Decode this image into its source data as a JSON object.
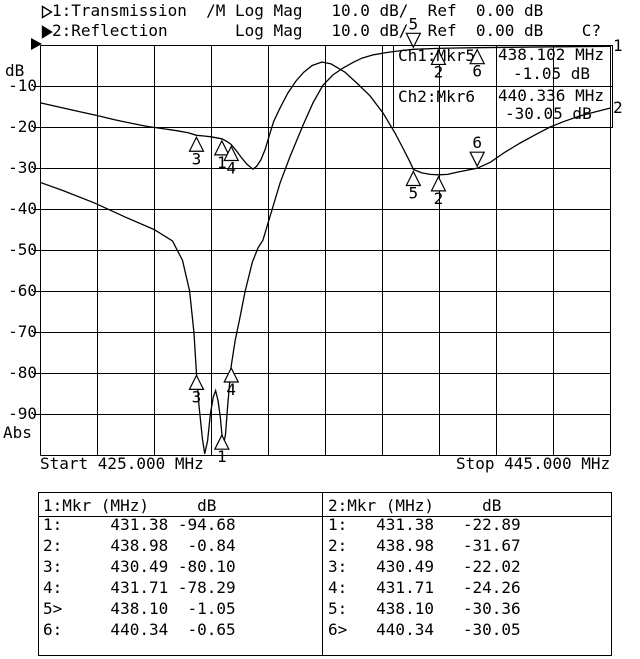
{
  "header": {
    "line1_text": "1:Transmission  /M Log Mag   10.0 dB/  Ref  0.00 dB",
    "line2_text": "2:Reflection       Log Mag   10.0 dB/  Ref  0.00 dB    C?"
  },
  "icons": {
    "trace1_indicator": "open-right-triangle",
    "trace2_indicator": "filled-right-triangle",
    "ref_level_arrow": "filled-right-triangle",
    "marker_normal": "up-triangle",
    "marker_active": "down-triangle"
  },
  "y_axis": {
    "unit_label": "dB",
    "tick_labels": [
      "-10",
      "-20",
      "-30",
      "-40",
      "-50",
      "-60",
      "-70",
      "-80",
      "-90"
    ],
    "bottom_label": "Abs"
  },
  "x_axis": {
    "start_label": "Start 425.000 MHz",
    "stop_label": "Stop 445.000 MHz"
  },
  "trace_edge_labels": {
    "trace1": "1",
    "trace2": "2"
  },
  "marker_info": {
    "ch1": {
      "label": "Ch1:Mkr5",
      "freq": "438.102 MHz",
      "level": "-1.05 dB"
    },
    "ch2": {
      "label": "Ch2:Mkr6",
      "freq": "440.336 MHz",
      "level": "-30.05 dB"
    }
  },
  "marker_tables": [
    {
      "header": "1:Mkr (MHz)     dB",
      "rows": [
        "1:     431.38 -94.68",
        "2:     438.98  -0.84",
        "3:     430.49 -80.10",
        "4:     431.71 -78.29",
        "5>     438.10  -1.05",
        "6:     440.34  -0.65"
      ]
    },
    {
      "header": "2:Mkr (MHz)     dB",
      "rows": [
        "1:   431.38   -22.89",
        "2:   438.98   -31.67",
        "3:   430.49   -22.02",
        "4:   431.71   -24.26",
        "5:   438.10   -30.36",
        "6>   440.34   -30.05"
      ]
    }
  ],
  "chart_data": {
    "type": "line",
    "title": "",
    "x_unit": "MHz",
    "y_unit": "dB",
    "x_range": [
      425.0,
      445.0
    ],
    "y_range": [
      -100,
      0
    ],
    "y_per_div": 10,
    "x_divisions": 10,
    "grid": true,
    "series": [
      {
        "name": "Transmission",
        "channel": 1,
        "points": [
          [
            425.0,
            -33.5
          ],
          [
            425.8,
            -35.5
          ],
          [
            426.9,
            -38.5
          ],
          [
            428.0,
            -42.0
          ],
          [
            429.0,
            -45.0
          ],
          [
            429.65,
            -47.8
          ],
          [
            430.0,
            -52.5
          ],
          [
            430.25,
            -60.0
          ],
          [
            430.4,
            -70.0
          ],
          [
            430.49,
            -80.1
          ],
          [
            430.58,
            -88.0
          ],
          [
            430.7,
            -96.0
          ],
          [
            430.78,
            -99.7
          ],
          [
            430.88,
            -96.5
          ],
          [
            430.98,
            -90.0
          ],
          [
            431.08,
            -85.8
          ],
          [
            431.16,
            -84.3
          ],
          [
            431.25,
            -86.8
          ],
          [
            431.33,
            -91.0
          ],
          [
            431.38,
            -94.68
          ],
          [
            431.44,
            -97.4
          ],
          [
            431.51,
            -95.0
          ],
          [
            431.58,
            -88.5
          ],
          [
            431.65,
            -82.8
          ],
          [
            431.71,
            -78.29
          ],
          [
            431.85,
            -72.0
          ],
          [
            432.0,
            -67.0
          ],
          [
            432.2,
            -60.0
          ],
          [
            432.45,
            -53.0
          ],
          [
            432.65,
            -49.5
          ],
          [
            432.82,
            -47.6
          ],
          [
            433.14,
            -40.2
          ],
          [
            433.42,
            -33.7
          ],
          [
            433.77,
            -27.3
          ],
          [
            434.23,
            -19.5
          ],
          [
            434.58,
            -14.1
          ],
          [
            434.93,
            -9.8
          ],
          [
            435.28,
            -7.3
          ],
          [
            435.63,
            -5.6
          ],
          [
            436.0,
            -4.2
          ],
          [
            436.3,
            -3.2
          ],
          [
            436.7,
            -2.4
          ],
          [
            437.2,
            -1.8
          ],
          [
            437.7,
            -1.35
          ],
          [
            438.1,
            -1.05
          ],
          [
            438.98,
            -0.84
          ],
          [
            439.6,
            -0.74
          ],
          [
            440.34,
            -0.65
          ],
          [
            441.5,
            -0.55
          ],
          [
            443.0,
            -0.45
          ],
          [
            445.0,
            -0.35
          ]
        ]
      },
      {
        "name": "Reflection",
        "channel": 2,
        "points": [
          [
            425.0,
            -14.1
          ],
          [
            425.7,
            -15.2
          ],
          [
            426.4,
            -16.3
          ],
          [
            427.0,
            -17.2
          ],
          [
            427.6,
            -18.2
          ],
          [
            428.2,
            -19.1
          ],
          [
            428.8,
            -19.9
          ],
          [
            429.3,
            -20.4
          ],
          [
            429.8,
            -20.9
          ],
          [
            430.2,
            -21.4
          ],
          [
            430.49,
            -22.02
          ],
          [
            430.75,
            -22.2
          ],
          [
            431.0,
            -22.4
          ],
          [
            431.38,
            -22.89
          ],
          [
            431.55,
            -23.5
          ],
          [
            431.71,
            -24.26
          ],
          [
            431.88,
            -25.7
          ],
          [
            432.05,
            -27.3
          ],
          [
            432.25,
            -29.0
          ],
          [
            432.47,
            -30.3
          ],
          [
            432.6,
            -29.6
          ],
          [
            432.75,
            -28.0
          ],
          [
            432.9,
            -25.5
          ],
          [
            433.05,
            -22.0
          ],
          [
            433.2,
            -18.6
          ],
          [
            433.42,
            -15.4
          ],
          [
            433.7,
            -11.7
          ],
          [
            433.98,
            -8.8
          ],
          [
            434.26,
            -6.6
          ],
          [
            434.55,
            -5.0
          ],
          [
            434.89,
            -4.15
          ],
          [
            435.21,
            -4.6
          ],
          [
            435.7,
            -6.6
          ],
          [
            436.12,
            -9.3
          ],
          [
            436.58,
            -12.4
          ],
          [
            437.04,
            -16.6
          ],
          [
            437.46,
            -21.5
          ],
          [
            437.77,
            -25.6
          ],
          [
            437.98,
            -28.5
          ],
          [
            438.1,
            -30.36
          ],
          [
            438.4,
            -31.2
          ],
          [
            438.7,
            -31.55
          ],
          [
            438.98,
            -31.67
          ],
          [
            439.3,
            -31.55
          ],
          [
            439.65,
            -31.0
          ],
          [
            440.0,
            -30.5
          ],
          [
            440.34,
            -30.05
          ],
          [
            440.8,
            -28.6
          ],
          [
            441.3,
            -26.2
          ],
          [
            441.85,
            -23.9
          ],
          [
            442.4,
            -21.8
          ],
          [
            442.9,
            -20.0
          ],
          [
            443.4,
            -18.6
          ],
          [
            443.95,
            -17.3
          ],
          [
            444.5,
            -16.3
          ],
          [
            445.0,
            -15.4
          ]
        ]
      }
    ],
    "markers": [
      {
        "n": "1",
        "channel": 1,
        "freq": 431.38,
        "db": -94.68,
        "active": false
      },
      {
        "n": "2",
        "channel": 1,
        "freq": 438.98,
        "db": -0.84,
        "active": false
      },
      {
        "n": "3",
        "channel": 1,
        "freq": 430.49,
        "db": -80.1,
        "active": false
      },
      {
        "n": "4",
        "channel": 1,
        "freq": 431.71,
        "db": -78.29,
        "active": false
      },
      {
        "n": "5",
        "channel": 1,
        "freq": 438.1,
        "db": -1.05,
        "active": true
      },
      {
        "n": "6",
        "channel": 1,
        "freq": 440.34,
        "db": -0.65,
        "active": false
      },
      {
        "n": "1",
        "channel": 2,
        "freq": 431.38,
        "db": -22.89,
        "active": false
      },
      {
        "n": "2",
        "channel": 2,
        "freq": 438.98,
        "db": -31.67,
        "active": false
      },
      {
        "n": "3",
        "channel": 2,
        "freq": 430.49,
        "db": -22.02,
        "active": false
      },
      {
        "n": "4",
        "channel": 2,
        "freq": 431.71,
        "db": -24.26,
        "active": false
      },
      {
        "n": "5",
        "channel": 2,
        "freq": 438.1,
        "db": -30.36,
        "active": false
      },
      {
        "n": "6",
        "channel": 2,
        "freq": 440.34,
        "db": -30.05,
        "active": true
      }
    ]
  }
}
